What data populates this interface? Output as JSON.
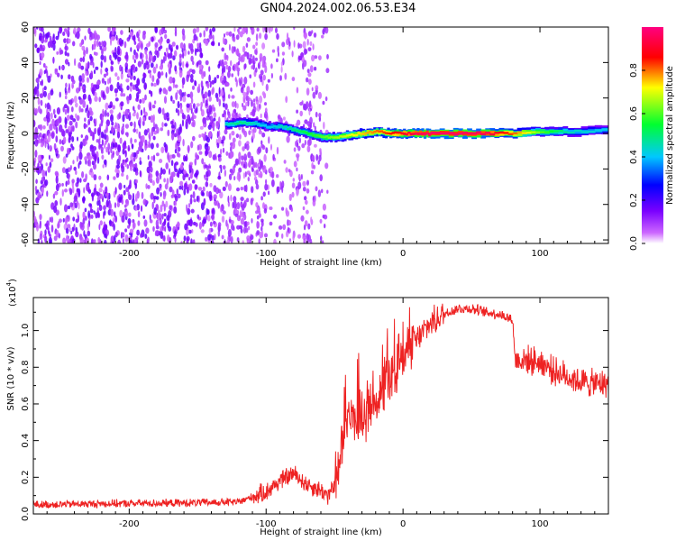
{
  "title": "GN04.2024.002.06.53.E34",
  "chart_data": [
    {
      "type": "heatmap",
      "xlabel": "Height of straight line (km)",
      "ylabel": "Frequency (Hz)",
      "xlim": [
        -270,
        150
      ],
      "ylim": [
        -62,
        60
      ],
      "x_ticks": [
        -200,
        -100,
        0,
        100
      ],
      "y_ticks": [
        -60,
        -40,
        -20,
        0,
        20,
        40,
        60
      ],
      "x_tick_labels": [
        "-200",
        "-100",
        "0",
        "100"
      ],
      "y_tick_labels": [
        "-60",
        "-40",
        "-20",
        "0",
        "20",
        "40",
        "60"
      ],
      "colorbar": {
        "label": "Normalized spectral amplitude",
        "range": [
          0,
          1
        ],
        "ticks": [
          0.0,
          0.2,
          0.4,
          0.6,
          0.8
        ],
        "tick_labels": [
          "0.0",
          "0.2",
          "0.4",
          "0.6",
          "0.8"
        ],
        "colormap": "rainbow (white at 0, purple, blue, cyan, green, yellow, red, magenta at 1)"
      },
      "noise_region_x": [
        -270,
        -55
      ],
      "signal_ridge": [
        {
          "x": -130,
          "freq": 5,
          "amp": 0.45
        },
        {
          "x": -120,
          "freq": 6,
          "amp": 0.5
        },
        {
          "x": -110,
          "freq": 6,
          "amp": 0.45
        },
        {
          "x": -100,
          "freq": 4,
          "amp": 0.4
        },
        {
          "x": -90,
          "freq": 4,
          "amp": 0.45
        },
        {
          "x": -80,
          "freq": 2,
          "amp": 0.5
        },
        {
          "x": -70,
          "freq": 0,
          "amp": 0.55
        },
        {
          "x": -60,
          "freq": -2,
          "amp": 0.6
        },
        {
          "x": -50,
          "freq": -2,
          "amp": 0.65
        },
        {
          "x": -40,
          "freq": -1,
          "amp": 0.7
        },
        {
          "x": -30,
          "freq": 0,
          "amp": 0.75
        },
        {
          "x": -20,
          "freq": 1,
          "amp": 0.8
        },
        {
          "x": -10,
          "freq": 0,
          "amp": 0.85
        },
        {
          "x": 0,
          "freq": 0,
          "amp": 0.9
        },
        {
          "x": 10,
          "freq": 0,
          "amp": 0.95
        },
        {
          "x": 20,
          "freq": 0,
          "amp": 0.97
        },
        {
          "x": 40,
          "freq": 0,
          "amp": 0.97
        },
        {
          "x": 60,
          "freq": 0,
          "amp": 0.95
        },
        {
          "x": 80,
          "freq": 0,
          "amp": 0.8
        },
        {
          "x": 100,
          "freq": 1,
          "amp": 0.6
        },
        {
          "x": 120,
          "freq": 1,
          "amp": 0.45
        },
        {
          "x": 150,
          "freq": 2,
          "amp": 0.4
        }
      ]
    },
    {
      "type": "line",
      "xlabel": "Height of straight line (km)",
      "ylabel": "SNR (10 * v/v)",
      "y_multiplier_label": "(x10",
      "y_multiplier_exp": "4",
      "y_multiplier_close": ")",
      "xlim": [
        -270,
        150
      ],
      "ylim": [
        0,
        11800
      ],
      "x_ticks": [
        -200,
        -100,
        0,
        100
      ],
      "x_tick_labels": [
        "-200",
        "-100",
        "0",
        "100"
      ],
      "y_ticks": [
        0,
        2000,
        4000,
        6000,
        8000,
        10000
      ],
      "y_tick_labels": [
        "0.0",
        "0.2",
        "0.4",
        "0.6",
        "0.8",
        "1.0"
      ],
      "color": "#ee2222",
      "series": [
        {
          "x": [
            -270,
            -220,
            -160,
            -120,
            -100,
            -90,
            -80,
            -70,
            -60,
            -55,
            -50,
            -45,
            -40,
            -30,
            -20,
            -10,
            0,
            10,
            20,
            30,
            40,
            50,
            60,
            70,
            80,
            82,
            90,
            100,
            110,
            120,
            130,
            140,
            150
          ],
          "y": [
            500,
            560,
            600,
            650,
            1200,
            1800,
            2200,
            1600,
            1300,
            1000,
            1500,
            4000,
            5300,
            5400,
            6200,
            7400,
            8800,
            9500,
            10400,
            10900,
            11200,
            11200,
            11000,
            10900,
            10600,
            8400,
            8400,
            8300,
            7800,
            7500,
            7200,
            7100,
            7100
          ]
        }
      ]
    }
  ]
}
